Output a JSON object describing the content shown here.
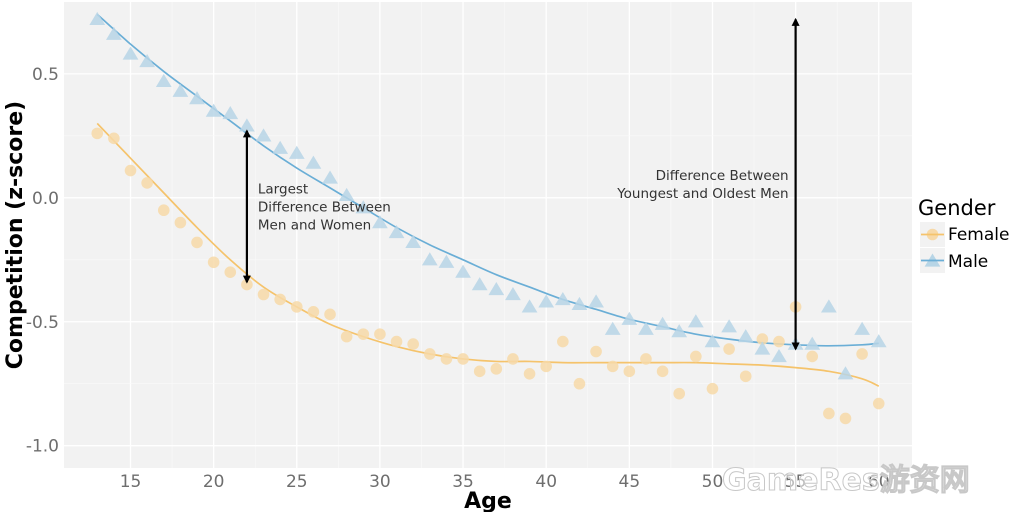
{
  "chart_data": {
    "type": "scatter",
    "xlabel": "Age",
    "ylabel": "Competition (z-score)",
    "xlim": [
      11,
      62
    ],
    "ylim": [
      -1.09,
      0.79
    ],
    "x_ticks": [
      15,
      20,
      25,
      30,
      35,
      40,
      45,
      50,
      55,
      60
    ],
    "y_ticks": [
      0.5,
      0.0,
      -0.5,
      -1.0
    ],
    "x_tick_labels": [
      "15",
      "20",
      "25",
      "30",
      "35",
      "40",
      "45",
      "50",
      "55",
      "60"
    ],
    "y_tick_labels": [
      "0.5",
      "0.0",
      "-0.5",
      "-1.0"
    ],
    "grid": true,
    "legend_title": "Gender",
    "legend_position": "right",
    "series": [
      {
        "name": "Female",
        "marker": "circle",
        "color": "#f5c36b",
        "point_color": "#f7d9a8",
        "x": [
          13,
          14,
          15,
          16,
          17,
          18,
          19,
          20,
          21,
          22,
          23,
          24,
          25,
          26,
          27,
          28,
          29,
          30,
          31,
          32,
          33,
          34,
          35,
          36,
          37,
          38,
          39,
          40,
          41,
          42,
          43,
          44,
          45,
          46,
          47,
          48,
          49,
          50,
          51,
          52,
          53,
          54,
          55,
          56,
          57,
          58,
          59,
          60
        ],
        "y": [
          0.26,
          0.24,
          0.11,
          0.06,
          -0.05,
          -0.1,
          -0.18,
          -0.26,
          -0.3,
          -0.35,
          -0.39,
          -0.41,
          -0.44,
          -0.46,
          -0.47,
          -0.56,
          -0.55,
          -0.55,
          -0.58,
          -0.59,
          -0.63,
          -0.65,
          -0.65,
          -0.7,
          -0.69,
          -0.65,
          -0.71,
          -0.68,
          -0.58,
          -0.75,
          -0.62,
          -0.68,
          -0.7,
          -0.65,
          -0.7,
          -0.79,
          -0.64,
          -0.77,
          -0.61,
          -0.72,
          -0.57,
          -0.58,
          -0.44,
          -0.64,
          -0.87,
          -0.89,
          -0.63,
          -0.83
        ],
        "trend_x": [
          13,
          15,
          17,
          19,
          21,
          23,
          25,
          27,
          29,
          31,
          33,
          35,
          37,
          39,
          41,
          43,
          45,
          47,
          49,
          51,
          53,
          55,
          57,
          59,
          60
        ],
        "trend_y": [
          0.3,
          0.16,
          0.02,
          -0.12,
          -0.25,
          -0.36,
          -0.44,
          -0.51,
          -0.56,
          -0.6,
          -0.63,
          -0.65,
          -0.66,
          -0.66,
          -0.665,
          -0.665,
          -0.665,
          -0.665,
          -0.665,
          -0.67,
          -0.675,
          -0.685,
          -0.7,
          -0.73,
          -0.76
        ]
      },
      {
        "name": "Male",
        "marker": "triangle",
        "color": "#6aaed6",
        "point_color": "#b7d5e6",
        "x": [
          13,
          14,
          15,
          16,
          17,
          18,
          19,
          20,
          21,
          22,
          23,
          24,
          25,
          26,
          27,
          28,
          29,
          30,
          31,
          32,
          33,
          34,
          35,
          36,
          37,
          38,
          39,
          40,
          41,
          42,
          43,
          44,
          45,
          46,
          47,
          48,
          49,
          50,
          51,
          52,
          53,
          54,
          55,
          56,
          57,
          58,
          59,
          60
        ],
        "y": [
          0.72,
          0.66,
          0.58,
          0.55,
          0.47,
          0.43,
          0.4,
          0.35,
          0.34,
          0.29,
          0.25,
          0.2,
          0.18,
          0.14,
          0.08,
          0.01,
          -0.04,
          -0.1,
          -0.14,
          -0.18,
          -0.25,
          -0.26,
          -0.3,
          -0.35,
          -0.37,
          -0.39,
          -0.44,
          -0.42,
          -0.41,
          -0.43,
          -0.42,
          -0.53,
          -0.49,
          -0.53,
          -0.51,
          -0.54,
          -0.5,
          -0.58,
          -0.52,
          -0.56,
          -0.61,
          -0.64,
          -0.59,
          -0.59,
          -0.44,
          -0.71,
          -0.53,
          -0.58
        ],
        "trend_x": [
          13,
          15,
          17,
          19,
          21,
          23,
          25,
          27,
          29,
          31,
          33,
          35,
          37,
          39,
          41,
          43,
          45,
          47,
          49,
          51,
          53,
          55,
          57,
          59,
          60
        ],
        "trend_y": [
          0.74,
          0.62,
          0.51,
          0.41,
          0.31,
          0.21,
          0.12,
          0.04,
          -0.04,
          -0.12,
          -0.19,
          -0.25,
          -0.31,
          -0.36,
          -0.41,
          -0.45,
          -0.49,
          -0.52,
          -0.55,
          -0.57,
          -0.585,
          -0.593,
          -0.597,
          -0.593,
          -0.587
        ]
      }
    ],
    "annotations": [
      {
        "lines": [
          "Largest",
          "Difference Between",
          "Men and Women"
        ],
        "arrow_x": 22,
        "arrow_y": [
          0.27,
          -0.34
        ],
        "text_side": "right"
      },
      {
        "lines": [
          "Difference Between",
          "Youngest and Oldest Men"
        ],
        "arrow_x": 55,
        "arrow_y": [
          0.72,
          -0.61
        ],
        "text_side": "left"
      }
    ]
  },
  "watermark": "GameRes游资网"
}
